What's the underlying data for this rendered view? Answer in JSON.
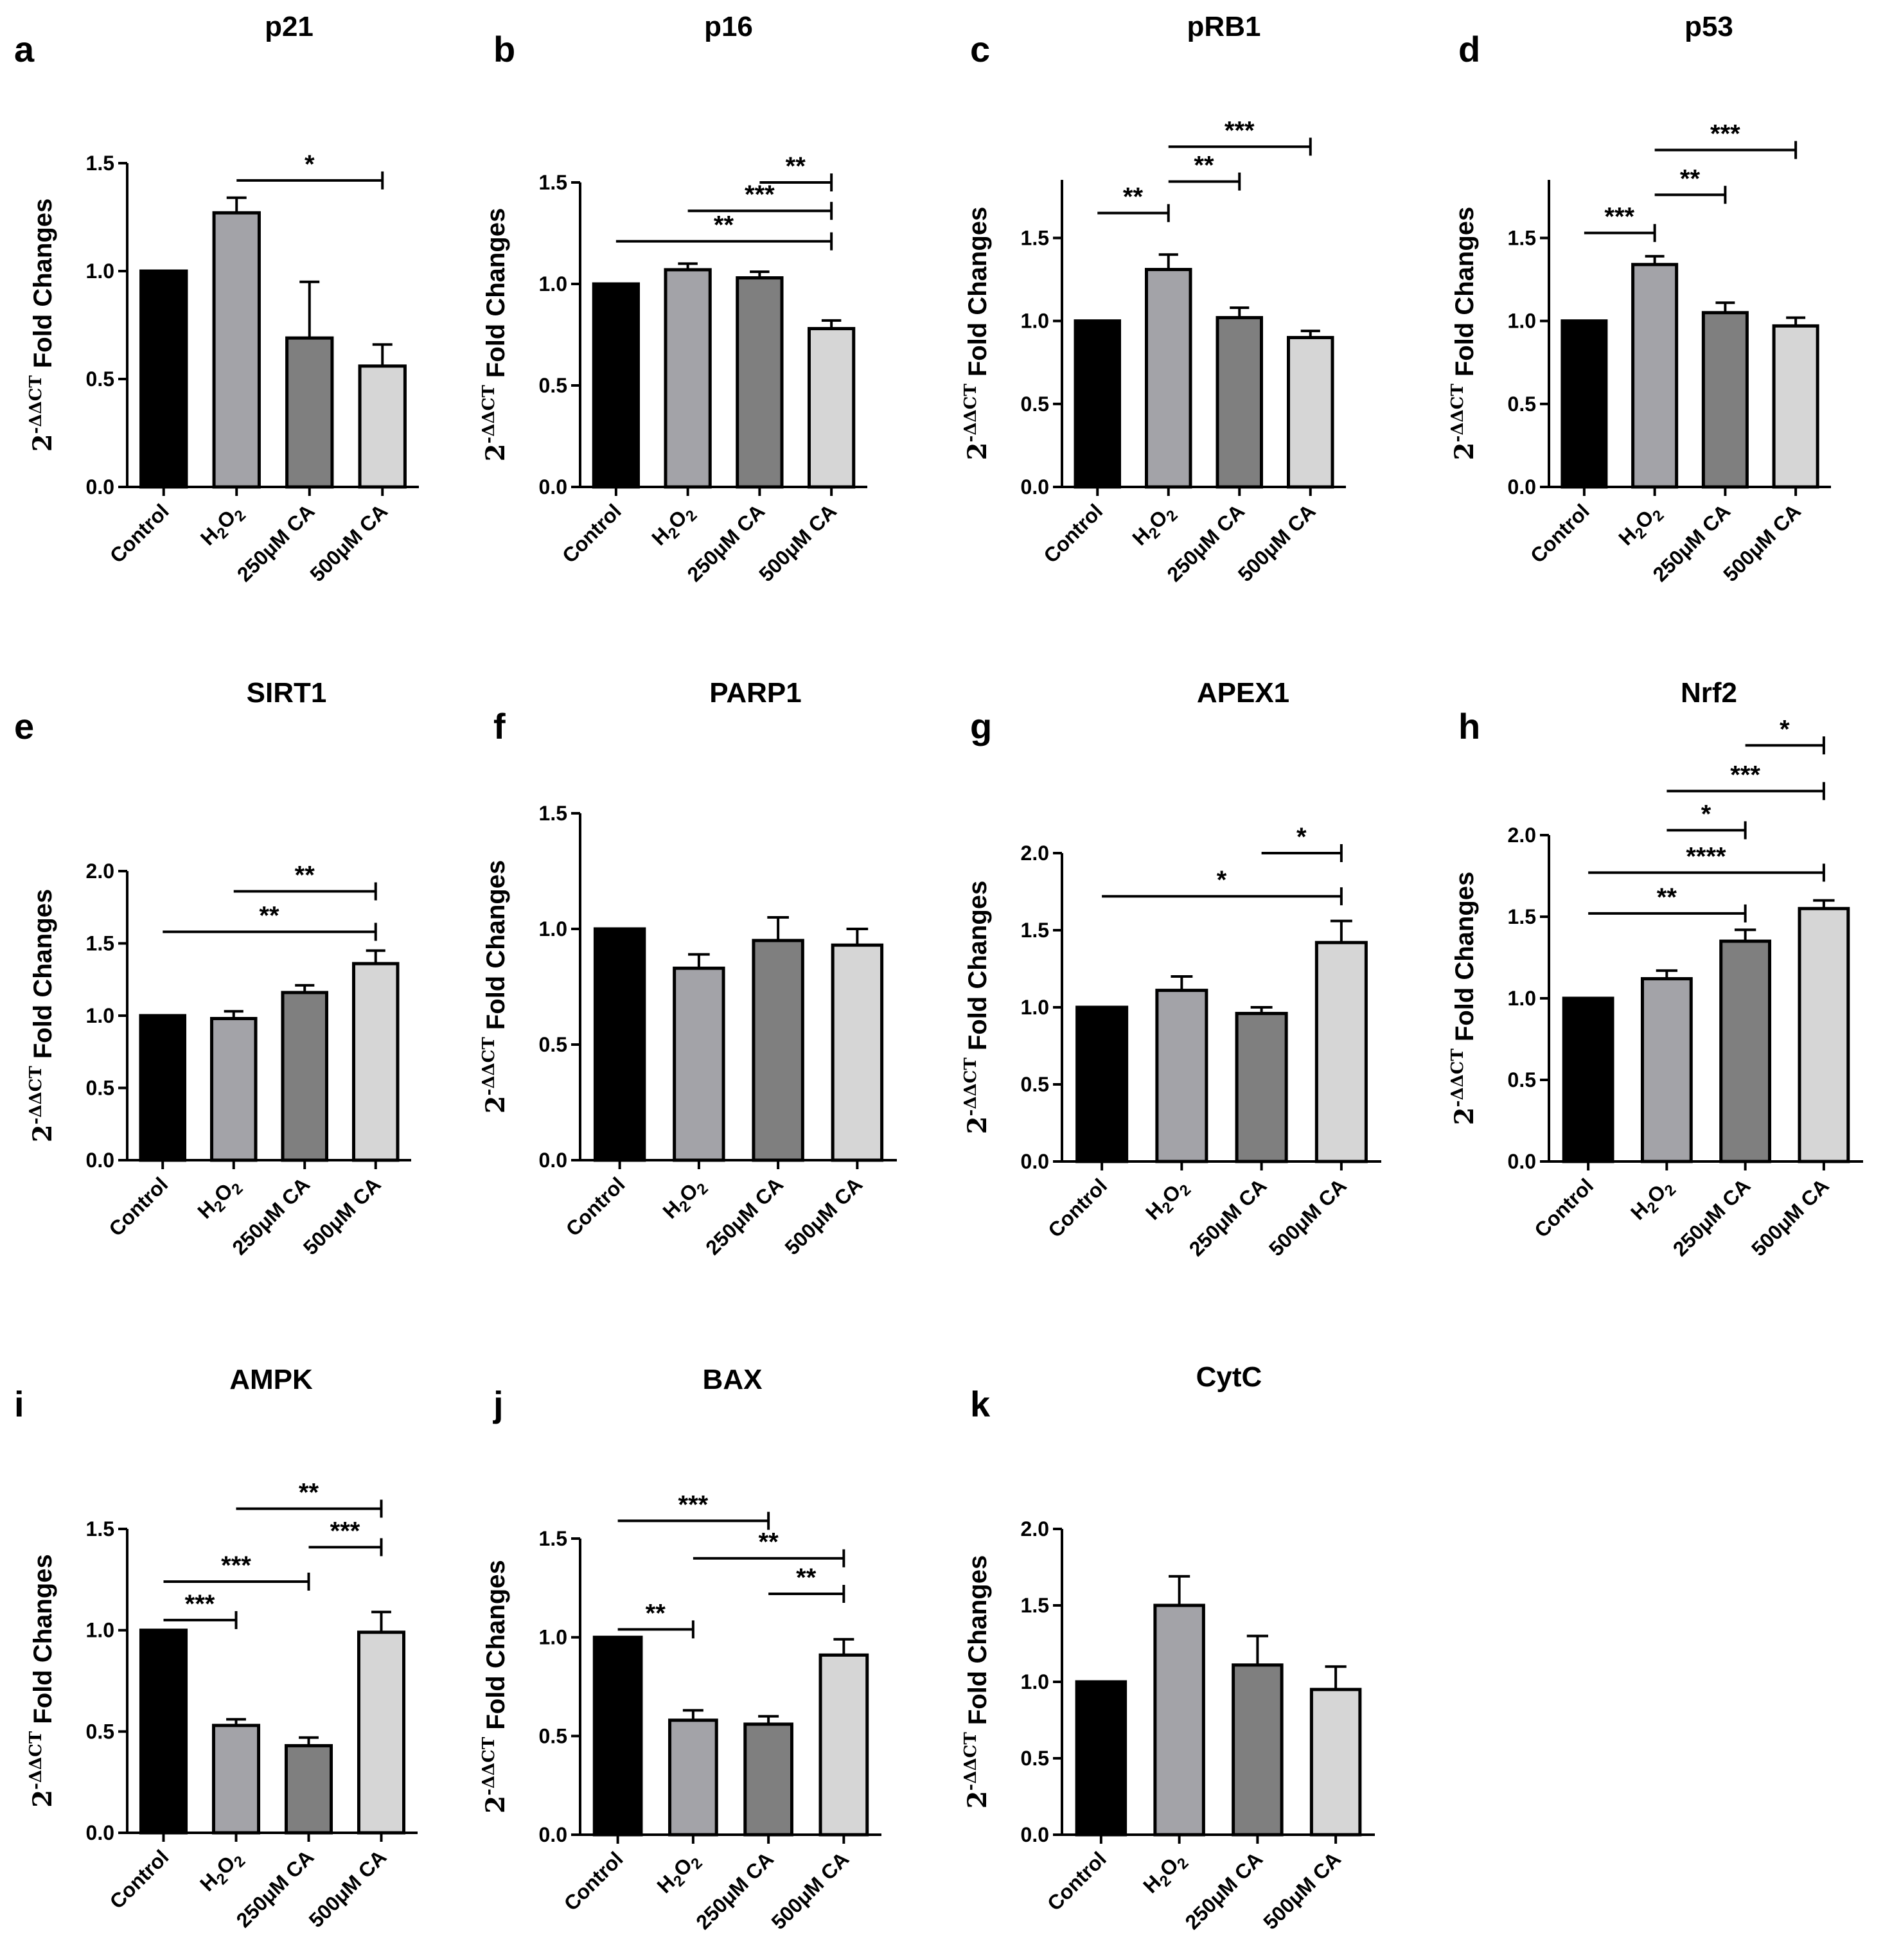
{
  "figure": {
    "categories": [
      "Control",
      "H2O2",
      "250μM CA",
      "500μM CA"
    ],
    "h2o2_label": {
      "base1": "H",
      "sub1": "2",
      "base2": "O",
      "sub2": "2"
    },
    "ylabel": {
      "base": "2",
      "superscript": "-ΔΔCT",
      "text": " Fold Changes"
    },
    "bar_colors": [
      "#000000",
      "#a3a3a8",
      "#7f7f7f",
      "#d6d6d6"
    ]
  },
  "chart_data": [
    {
      "panel": "a",
      "type": "bar",
      "title": "p21",
      "categories": [
        "Control",
        "H2O2",
        "250μM CA",
        "500μM CA"
      ],
      "values": [
        1.0,
        1.27,
        0.69,
        0.56
      ],
      "errors": [
        0,
        0.07,
        0.26,
        0.1
      ],
      "ylim": [
        0,
        1.5
      ],
      "yticks": [
        "0.0",
        "0.5",
        "1.0",
        "1.5"
      ],
      "significance": [
        {
          "from": 1,
          "to": 3,
          "label": "*",
          "y": 1.42
        }
      ]
    },
    {
      "panel": "b",
      "type": "bar",
      "title": "p16",
      "categories": [
        "Control",
        "H2O2",
        "250μM CA",
        "500μM CA"
      ],
      "values": [
        1.0,
        1.07,
        1.03,
        0.78
      ],
      "errors": [
        0,
        0.03,
        0.03,
        0.04
      ],
      "ylim": [
        0,
        1.5
      ],
      "yticks": [
        "0.0",
        "0.5",
        "1.0",
        "1.5"
      ],
      "significance": [
        {
          "from": 0,
          "to": 3,
          "label": "**",
          "y": 1.21
        },
        {
          "from": 1,
          "to": 3,
          "label": "***",
          "y": 1.36
        },
        {
          "from": 2,
          "to": 3,
          "label": "**",
          "y": 1.5
        }
      ]
    },
    {
      "panel": "c",
      "type": "bar",
      "title": "pRB1",
      "categories": [
        "Control",
        "H2O2",
        "250μM CA",
        "500μM CA"
      ],
      "values": [
        1.0,
        1.31,
        1.02,
        0.9
      ],
      "errors": [
        0,
        0.09,
        0.06,
        0.04
      ],
      "ylim": [
        0,
        1.85
      ],
      "yticks": [
        "0.0",
        "0.5",
        "1.0",
        "1.5"
      ],
      "significance": [
        {
          "from": 0,
          "to": 1,
          "label": "**",
          "y": 1.65
        },
        {
          "from": 1,
          "to": 2,
          "label": "**",
          "y": 1.84
        },
        {
          "from": 1,
          "to": 3,
          "label": "***",
          "y": 2.05
        }
      ]
    },
    {
      "panel": "d",
      "type": "bar",
      "title": "p53",
      "categories": [
        "Control",
        "H2O2",
        "250μM CA",
        "500μM CA"
      ],
      "values": [
        1.0,
        1.34,
        1.05,
        0.97
      ],
      "errors": [
        0,
        0.05,
        0.06,
        0.05
      ],
      "ylim": [
        0,
        1.85
      ],
      "yticks": [
        "0.0",
        "0.5",
        "1.0",
        "1.5"
      ],
      "significance": [
        {
          "from": 0,
          "to": 1,
          "label": "***",
          "y": 1.53
        },
        {
          "from": 1,
          "to": 2,
          "label": "**",
          "y": 1.76
        },
        {
          "from": 1,
          "to": 3,
          "label": "***",
          "y": 2.03
        }
      ]
    },
    {
      "panel": "e",
      "type": "bar",
      "title": "SIRT1",
      "categories": [
        "Control",
        "H2O2",
        "250μM CA",
        "500μM CA"
      ],
      "values": [
        1.0,
        0.98,
        1.16,
        1.36
      ],
      "errors": [
        0,
        0.05,
        0.05,
        0.09
      ],
      "ylim": [
        0,
        2.0
      ],
      "yticks": [
        "0.0",
        "0.5",
        "1.0",
        "1.5",
        "2.0"
      ],
      "significance": [
        {
          "from": 0,
          "to": 3,
          "label": "**",
          "y": 1.58
        },
        {
          "from": 1,
          "to": 3,
          "label": "**",
          "y": 1.86
        }
      ]
    },
    {
      "panel": "f",
      "type": "bar",
      "title": "PARP1",
      "categories": [
        "Control",
        "H2O2",
        "250μM CA",
        "500μM CA"
      ],
      "values": [
        1.0,
        0.83,
        0.95,
        0.93
      ],
      "errors": [
        0,
        0.06,
        0.1,
        0.07
      ],
      "ylim": [
        0,
        1.5
      ],
      "yticks": [
        "0.0",
        "0.5",
        "1.0",
        "1.5"
      ],
      "significance": []
    },
    {
      "panel": "g",
      "type": "bar",
      "title": "APEX1",
      "categories": [
        "Control",
        "H2O2",
        "250μM CA",
        "500μM CA"
      ],
      "values": [
        1.0,
        1.11,
        0.96,
        1.42
      ],
      "errors": [
        0,
        0.09,
        0.04,
        0.14
      ],
      "ylim": [
        0,
        2.0
      ],
      "yticks": [
        "0.0",
        "0.5",
        "1.0",
        "1.5",
        "2.0"
      ],
      "significance": [
        {
          "from": 0,
          "to": 3,
          "label": "*",
          "y": 1.72
        },
        {
          "from": 2,
          "to": 3,
          "label": "*",
          "y": 2.0
        }
      ]
    },
    {
      "panel": "h",
      "type": "bar",
      "title": "Nrf2",
      "categories": [
        "Control",
        "H2O2",
        "250μM CA",
        "500μM CA"
      ],
      "values": [
        1.0,
        1.12,
        1.35,
        1.55
      ],
      "errors": [
        0,
        0.05,
        0.07,
        0.05
      ],
      "ylim": [
        0,
        2.0
      ],
      "yticks": [
        "0.0",
        "0.5",
        "1.0",
        "1.5",
        "2.0"
      ],
      "significance": [
        {
          "from": 0,
          "to": 2,
          "label": "**",
          "y": 1.52
        },
        {
          "from": 0,
          "to": 3,
          "label": "****",
          "y": 1.77
        },
        {
          "from": 1,
          "to": 2,
          "label": "*",
          "y": 2.03
        },
        {
          "from": 1,
          "to": 3,
          "label": "***",
          "y": 2.27
        },
        {
          "from": 2,
          "to": 3,
          "label": "*",
          "y": 2.55
        }
      ]
    },
    {
      "panel": "i",
      "type": "bar",
      "title": "AMPK",
      "categories": [
        "Control",
        "H2O2",
        "250μM CA",
        "500μM CA"
      ],
      "values": [
        1.0,
        0.53,
        0.43,
        0.99
      ],
      "errors": [
        0,
        0.03,
        0.04,
        0.1
      ],
      "ylim": [
        0,
        1.5
      ],
      "yticks": [
        "0.0",
        "0.5",
        "1.0",
        "1.5"
      ],
      "significance": [
        {
          "from": 0,
          "to": 1,
          "label": "***",
          "y": 1.05
        },
        {
          "from": 0,
          "to": 2,
          "label": "***",
          "y": 1.24
        },
        {
          "from": 2,
          "to": 3,
          "label": "***",
          "y": 1.41
        },
        {
          "from": 1,
          "to": 3,
          "label": "**",
          "y": 1.6
        }
      ]
    },
    {
      "panel": "j",
      "type": "bar",
      "title": "BAX",
      "categories": [
        "Control",
        "H2O2",
        "250μM CA",
        "500μM CA"
      ],
      "values": [
        1.0,
        0.58,
        0.56,
        0.91
      ],
      "errors": [
        0,
        0.05,
        0.04,
        0.08
      ],
      "ylim": [
        0,
        1.5
      ],
      "yticks": [
        "0.0",
        "0.5",
        "1.0",
        "1.5"
      ],
      "significance": [
        {
          "from": 0,
          "to": 1,
          "label": "**",
          "y": 1.04
        },
        {
          "from": 2,
          "to": 3,
          "label": "**",
          "y": 1.22
        },
        {
          "from": 1,
          "to": 3,
          "label": "**",
          "y": 1.4
        },
        {
          "from": 0,
          "to": 2,
          "label": "***",
          "y": 1.59
        }
      ]
    },
    {
      "panel": "k",
      "type": "bar",
      "title": "CytC",
      "categories": [
        "Control",
        "H2O2",
        "250μM CA",
        "500μM CA"
      ],
      "values": [
        1.0,
        1.5,
        1.11,
        0.95
      ],
      "errors": [
        0,
        0.19,
        0.19,
        0.15
      ],
      "ylim": [
        0,
        2.0
      ],
      "yticks": [
        "0.0",
        "0.5",
        "1.0",
        "1.5",
        "2.0"
      ],
      "significance": []
    }
  ]
}
